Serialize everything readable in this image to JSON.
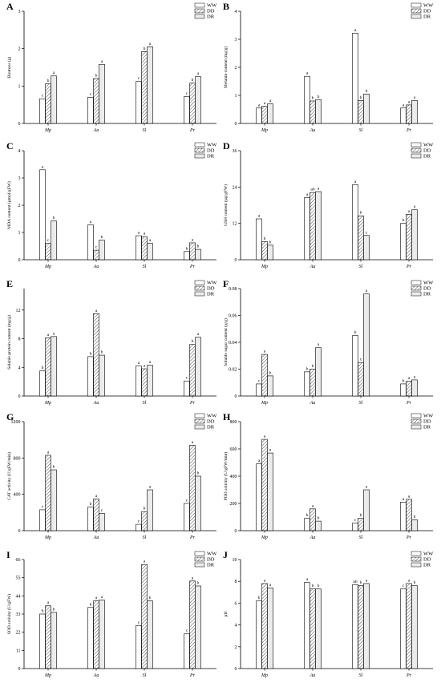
{
  "legend_labels": [
    "WW",
    "DD",
    "DR"
  ],
  "chart_data": [
    {
      "panel": "A",
      "type": "bar",
      "categories": [
        "Mp",
        "Aa",
        "Sl",
        "Pr"
      ],
      "ylabel": "Biomass (g)",
      "ylim": [
        0,
        3
      ],
      "yticks": [
        0,
        1,
        2,
        3
      ],
      "legend": "top-right",
      "series": [
        {
          "name": "WW",
          "values": [
            0.66,
            0.7,
            1.12,
            0.72
          ]
        },
        {
          "name": "DD",
          "values": [
            1.06,
            1.2,
            1.92,
            1.08
          ]
        },
        {
          "name": "DR",
          "values": [
            1.27,
            1.58,
            2.05,
            1.25
          ]
        }
      ],
      "letters": [
        [
          "c",
          "b",
          "a"
        ],
        [
          "c",
          "b",
          "a"
        ],
        [
          "c",
          "b",
          "a"
        ],
        [
          "c",
          "b",
          "a"
        ]
      ]
    },
    {
      "panel": "B",
      "type": "bar",
      "categories": [
        "Mp",
        "Aa",
        "Sl",
        "Pr"
      ],
      "ylabel": "Melanin content (mg/g)",
      "ylim": [
        0,
        4
      ],
      "yticks": [
        0,
        1,
        2,
        3,
        4
      ],
      "legend": "top-right",
      "series": [
        {
          "name": "WW",
          "values": [
            0.55,
            1.68,
            3.22,
            0.55
          ]
        },
        {
          "name": "DD",
          "values": [
            0.62,
            0.8,
            0.82,
            0.66
          ]
        },
        {
          "name": "DR",
          "values": [
            0.7,
            0.85,
            1.05,
            0.82
          ]
        }
      ],
      "letters": [
        [
          "a",
          "a",
          "a"
        ],
        [
          "a",
          "b",
          "b"
        ],
        [
          "a",
          "b",
          "b"
        ],
        [
          "a",
          "a",
          "a"
        ]
      ]
    },
    {
      "panel": "C",
      "type": "bar",
      "categories": [
        "Mp",
        "Aa",
        "Sl",
        "Pr"
      ],
      "ylabel": "MDA content (µmol/gFW)",
      "ylim": [
        0,
        4
      ],
      "yticks": [
        0,
        1,
        2,
        3,
        4
      ],
      "legend": "top-right",
      "series": [
        {
          "name": "WW",
          "values": [
            3.3,
            1.28,
            0.88,
            0.3
          ]
        },
        {
          "name": "DD",
          "values": [
            0.6,
            0.35,
            0.85,
            0.62
          ]
        },
        {
          "name": "DR",
          "values": [
            1.42,
            0.72,
            0.6,
            0.38
          ]
        }
      ],
      "letters": [
        [
          "a",
          "c",
          "b"
        ],
        [
          "a",
          "c",
          "b"
        ],
        [
          "a",
          "a",
          "a"
        ],
        [
          "b",
          "a",
          "b"
        ]
      ]
    },
    {
      "panel": "D",
      "type": "bar",
      "categories": [
        "Mp",
        "Aa",
        "Sl",
        "Pr"
      ],
      "ylabel": "GSH content (µg/gFW)",
      "ylim": [
        0,
        36
      ],
      "yticks": [
        0,
        12,
        24,
        36
      ],
      "legend": "top-right",
      "series": [
        {
          "name": "WW",
          "values": [
            13.5,
            20.5,
            24.8,
            12
          ]
        },
        {
          "name": "DD",
          "values": [
            6,
            22.2,
            14.5,
            15
          ]
        },
        {
          "name": "DR",
          "values": [
            4.8,
            22.5,
            8,
            16.5
          ]
        }
      ],
      "letters": [
        [
          "a",
          "b",
          "b"
        ],
        [
          "a",
          "ab",
          "a"
        ],
        [
          "a",
          "b",
          "c"
        ],
        [
          "b",
          "a",
          "a"
        ]
      ]
    },
    {
      "panel": "E",
      "type": "bar",
      "categories": [
        "Mp",
        "Aa",
        "Sl",
        "Pr"
      ],
      "ylabel": "Soluble protein content (mg/g)",
      "ylim": [
        0,
        15
      ],
      "yticks": [
        0,
        4,
        8,
        12
      ],
      "legend": "top-right",
      "series": [
        {
          "name": "WW",
          "values": [
            3.5,
            5.5,
            4.2,
            2.1
          ]
        },
        {
          "name": "DD",
          "values": [
            8.1,
            11.5,
            3.8,
            7.2
          ]
        },
        {
          "name": "DR",
          "values": [
            8.3,
            5.7,
            4.3,
            8.2
          ]
        }
      ],
      "letters": [
        [
          "b",
          "a",
          "a"
        ],
        [
          "b",
          "a",
          "b"
        ],
        [
          "a",
          "a",
          "a"
        ],
        [
          "c",
          "b",
          "a"
        ]
      ]
    },
    {
      "panel": "F",
      "type": "bar",
      "categories": [
        "Mp",
        "Aa",
        "Sl",
        "Pr"
      ],
      "ylabel": "Soluble sugar content (g/g)",
      "ylim": [
        0,
        0.08
      ],
      "yticks": [
        0,
        0.02,
        0.04,
        0.06,
        0.08
      ],
      "legend": "top-right",
      "series": [
        {
          "name": "WW",
          "values": [
            0.009,
            0.018,
            0.045,
            0.009
          ]
        },
        {
          "name": "DD",
          "values": [
            0.031,
            0.02,
            0.025,
            0.011
          ]
        },
        {
          "name": "DR",
          "values": [
            0.015,
            0.036,
            0.076,
            0.012
          ]
        }
      ],
      "letters": [
        [
          "c",
          "a",
          "b"
        ],
        [
          "b",
          "b",
          "a"
        ],
        [
          "b",
          "c",
          "a"
        ],
        [
          "b",
          "a",
          "a"
        ]
      ]
    },
    {
      "panel": "G",
      "type": "bar",
      "categories": [
        "Mp",
        "Aa",
        "Sl",
        "Pr"
      ],
      "ylabel": "CAT activity (U/gFW/min)",
      "ylim": [
        0,
        1200
      ],
      "yticks": [
        0,
        400,
        800,
        1200
      ],
      "legend": "top-right",
      "series": [
        {
          "name": "WW",
          "values": [
            230,
            260,
            70,
            300
          ]
        },
        {
          "name": "DD",
          "values": [
            830,
            350,
            210,
            940
          ]
        },
        {
          "name": "DR",
          "values": [
            670,
            190,
            450,
            600
          ]
        }
      ],
      "letters": [
        [
          "c",
          "a",
          "b"
        ],
        [
          "b",
          "a",
          "c"
        ],
        [
          "c",
          "b",
          "a"
        ],
        [
          "c",
          "a",
          "b"
        ]
      ]
    },
    {
      "panel": "H",
      "type": "bar",
      "categories": [
        "Mp",
        "Aa",
        "Sl",
        "Pr"
      ],
      "ylabel": "POD activity (U/gFW/min)",
      "ylim": [
        0,
        800
      ],
      "yticks": [
        0,
        200,
        400,
        600,
        800
      ],
      "legend": "top-right",
      "series": [
        {
          "name": "WW",
          "values": [
            490,
            90,
            55,
            210
          ]
        },
        {
          "name": "DD",
          "values": [
            670,
            160,
            90,
            230
          ]
        },
        {
          "name": "DR",
          "values": [
            570,
            70,
            300,
            80
          ]
        }
      ],
      "letters": [
        [
          "a",
          "a",
          "a"
        ],
        [
          "b",
          "a",
          "b"
        ],
        [
          "c",
          "b",
          "a"
        ],
        [
          "a",
          "a",
          "b"
        ]
      ]
    },
    {
      "panel": "I",
      "type": "bar",
      "categories": [
        "Mp",
        "Aa",
        "Sl",
        "Pr"
      ],
      "ylabel": "SOD activity (U/gFW)",
      "ylim": [
        0,
        66
      ],
      "yticks": [
        0,
        11,
        22,
        33,
        44,
        55,
        66
      ],
      "legend": "top-right",
      "series": [
        {
          "name": "WW",
          "values": [
            33,
            37,
            26,
            21
          ]
        },
        {
          "name": "DD",
          "values": [
            38,
            41,
            63,
            53
          ]
        },
        {
          "name": "DR",
          "values": [
            34,
            41.5,
            41,
            50
          ]
        }
      ],
      "letters": [
        [
          "b",
          "a",
          "b"
        ],
        [
          "b",
          "a",
          "a"
        ],
        [
          "c",
          "a",
          "b"
        ],
        [
          "c",
          "a",
          "b"
        ]
      ]
    },
    {
      "panel": "J",
      "type": "bar",
      "categories": [
        "Mp",
        "Aa",
        "Sl",
        "Pr"
      ],
      "ylabel": "pH",
      "ylim": [
        0,
        10
      ],
      "yticks": [
        0,
        2,
        4,
        6,
        8,
        10
      ],
      "legend": "top-right",
      "series": [
        {
          "name": "WW",
          "values": [
            6.2,
            7.9,
            7.7,
            7.3
          ]
        },
        {
          "name": "DD",
          "values": [
            7.8,
            7.3,
            7.6,
            7.8
          ]
        },
        {
          "name": "DR",
          "values": [
            7.4,
            7.3,
            7.8,
            7.6
          ]
        }
      ],
      "letters": [
        [
          "b",
          "a",
          "a"
        ],
        [
          "a",
          "b",
          "b"
        ],
        [
          "ab",
          "b",
          "a"
        ],
        [
          "c",
          "a",
          "b"
        ]
      ]
    }
  ]
}
